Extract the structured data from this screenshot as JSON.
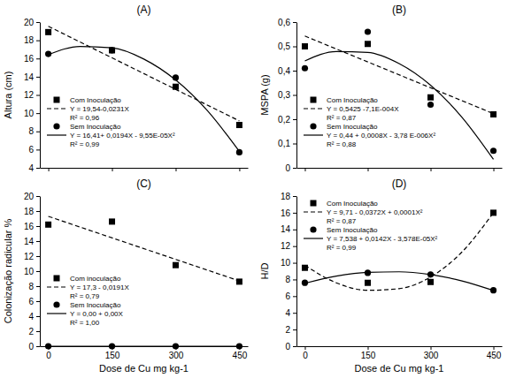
{
  "chart_data": [
    {
      "type": "scatter",
      "title": "(A)",
      "ylabel": "Altura (cm)",
      "x": [
        0,
        150,
        300,
        450
      ],
      "xlim": [
        -20,
        470
      ],
      "xticks": [
        0,
        150,
        300,
        450
      ],
      "ylim": [
        4,
        20
      ],
      "yticks": [
        4,
        6,
        8,
        10,
        12,
        14,
        16,
        18,
        20
      ],
      "tick_labels": "y",
      "legend": "lower left",
      "series": [
        {
          "name": "Com Inoculação",
          "color": "#000000",
          "marker": "square",
          "line_style": "dashed",
          "values": [
            18.9,
            16.9,
            12.9,
            8.7
          ],
          "equation": "Y = 19,54-0,0231X",
          "r2": "R² = 0,96",
          "trend": {
            "x": [
              0,
              450
            ],
            "values": [
              19.54,
              9.15
            ]
          }
        },
        {
          "name": "Sem Inoculação",
          "color": "#000000",
          "marker": "circle",
          "line_style": "solid",
          "values": [
            16.5,
            16.9,
            13.9,
            5.7
          ],
          "equation": "Y = 16,41+ 0,0194X - 9,55E-05X²",
          "r2": "R² = 0,99",
          "trend": {
            "x": [
              0,
              75,
              150,
              225,
              300,
              375,
              450
            ],
            "values": [
              16.41,
              17.33,
              17.17,
              15.94,
              13.64,
              10.26,
              5.8
            ]
          }
        }
      ]
    },
    {
      "type": "scatter",
      "title": "(B)",
      "ylabel": "MSPA (g)",
      "x": [
        0,
        150,
        300,
        450
      ],
      "xlim": [
        -20,
        470
      ],
      "xticks": [
        0,
        150,
        300,
        450
      ],
      "ylim": [
        0,
        0.6
      ],
      "yticks": [
        0,
        {
          "value": 0.1,
          "label": "0,1"
        },
        {
          "value": 0.2,
          "label": "0,2"
        },
        {
          "value": 0.3,
          "label": "0,3"
        },
        {
          "value": 0.4,
          "label": "0,4"
        },
        {
          "value": 0.5,
          "label": "0,5"
        },
        {
          "value": 0.6,
          "label": "0,6"
        }
      ],
      "tick_labels": "y",
      "legend": "lower left",
      "series": [
        {
          "name": "Com Inoculação",
          "color": "#000000",
          "marker": "square",
          "line_style": "dashed",
          "values": [
            0.5,
            0.51,
            0.29,
            0.22
          ],
          "equation": "Y = 0,5425 -7,1E-004X",
          "r2": "R² = 0,87",
          "trend": {
            "x": [
              0,
              450
            ],
            "values": [
              0.5425,
              0.223
            ]
          }
        },
        {
          "name": "Sem Inoculação",
          "color": "#000000",
          "marker": "circle",
          "line_style": "solid",
          "values": [
            0.41,
            0.56,
            0.26,
            0.07
          ],
          "equation": "Y = 0,44 + 0,0008X - 3,78 E-006X²",
          "r2": "R² = 0,88",
          "trend": {
            "x": [
              0,
              75,
              150,
              225,
              300,
              375,
              450
            ],
            "values": [
              0.44,
              0.479,
              0.475,
              0.429,
              0.34,
              0.208,
              0.035
            ]
          }
        }
      ]
    },
    {
      "type": "scatter",
      "title": "(C)",
      "ylabel": "Colonização radicular %",
      "xlabel": "Dose de Cu mg kg-1",
      "x": [
        0,
        150,
        300,
        450
      ],
      "xlim": [
        -20,
        470
      ],
      "xticks": [
        0,
        150,
        300,
        450
      ],
      "ylim": [
        0,
        20
      ],
      "yticks": [
        0,
        2,
        4,
        6,
        8,
        10,
        12,
        14,
        16,
        18,
        20
      ],
      "legend": "lower left",
      "series": [
        {
          "name": "Com inoculação",
          "color": "#000000",
          "marker": "square",
          "line_style": "dashed",
          "values": [
            16.2,
            16.6,
            10.8,
            8.6
          ],
          "equation": "Y = 17,3 - 0,0191X",
          "r2": "R² = 0,79",
          "trend": {
            "x": [
              0,
              450
            ],
            "values": [
              17.3,
              8.7
            ]
          }
        },
        {
          "name": "Sem Inoculação",
          "color": "#000000",
          "marker": "circle",
          "line_style": "solid",
          "values": [
            0,
            0,
            0,
            0
          ],
          "equation": "Y = 0,00 + 0,00X",
          "r2": "R² = 1,00",
          "trend": {
            "x": [
              0,
              450
            ],
            "values": [
              0,
              0
            ]
          }
        }
      ]
    },
    {
      "type": "scatter",
      "title": "(D)",
      "ylabel": "H/D",
      "xlabel": "Dose de Cu mg kg-1",
      "x": [
        0,
        150,
        300,
        450
      ],
      "xlim": [
        -20,
        470
      ],
      "xticks": [
        0,
        150,
        300,
        450
      ],
      "ylim": [
        0,
        18
      ],
      "yticks": [
        0,
        2,
        4,
        6,
        8,
        10,
        12,
        14,
        16,
        18
      ],
      "legend": "upper left",
      "series": [
        {
          "name": "Com Inoculação",
          "color": "#000000",
          "marker": "square",
          "line_style": "dashed",
          "values": [
            9.4,
            7.6,
            7.7,
            16.0
          ],
          "equation": "Y = 9,71 - 0,0372X + 0,0001X²",
          "r2": "R² = 0,87",
          "trend": {
            "x": [
              0,
              75,
              150,
              225,
              300,
              375,
              450
            ],
            "values": [
              9.7,
              7.6,
              6.7,
              6.9,
              8.3,
              11.3,
              16.0
            ]
          }
        },
        {
          "name": "Sem Inoculação",
          "color": "#000000",
          "marker": "circle",
          "line_style": "solid",
          "values": [
            7.6,
            8.8,
            8.6,
            6.7
          ],
          "equation": "Y = 7,538 + 0,0142X - 3,578E-05X²",
          "r2": "R² = 0,99",
          "trend": {
            "x": [
              0,
              75,
              150,
              225,
              300,
              375,
              450
            ],
            "values": [
              7.54,
              8.4,
              8.86,
              8.92,
              8.58,
              7.83,
              6.68
            ]
          }
        }
      ]
    }
  ]
}
